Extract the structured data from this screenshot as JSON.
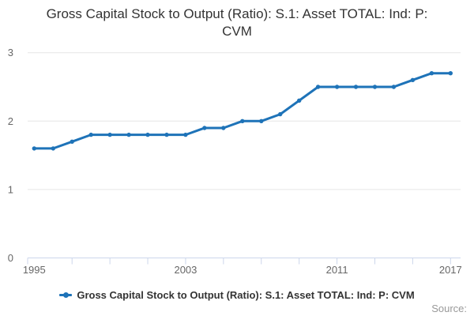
{
  "title": "Gross Capital Stock to Output (Ratio): S.1: Asset TOTAL: Ind: P: CVM",
  "source_label": "Source:",
  "legend": {
    "label": "Gross Capital Stock to Output (Ratio): S.1: Asset TOTAL: Ind: P: CVM"
  },
  "colors": {
    "line": "#1e73b8",
    "title_text": "#333333",
    "axis_label": "#666666",
    "axis_line": "#ccd6eb",
    "gridline": "#e6e6e6",
    "legend_text": "#333333",
    "source_text": "#999999"
  },
  "chart_data": {
    "type": "line",
    "title": "Gross Capital Stock to Output (Ratio): S.1: Asset TOTAL: Ind: P: CVM",
    "x": [
      1995,
      1996,
      1997,
      1998,
      1999,
      2000,
      2001,
      2002,
      2003,
      2004,
      2005,
      2006,
      2007,
      2008,
      2009,
      2010,
      2011,
      2012,
      2013,
      2014,
      2015,
      2016,
      2017
    ],
    "series": [
      {
        "name": "Gross Capital Stock to Output (Ratio): S.1: Asset TOTAL: Ind: P: CVM",
        "values": [
          1.6,
          1.6,
          1.7,
          1.8,
          1.8,
          1.8,
          1.8,
          1.8,
          1.8,
          1.9,
          1.9,
          2.0,
          2.0,
          2.1,
          2.3,
          2.5,
          2.5,
          2.5,
          2.5,
          2.5,
          2.6,
          2.7,
          2.7
        ]
      }
    ],
    "xlabel": "",
    "ylabel": "",
    "ylim": [
      0,
      3
    ],
    "y_ticks": [
      0,
      1,
      2,
      3
    ],
    "x_tick_years": [
      1997,
      1999,
      2001,
      2003,
      2005,
      2007,
      2009,
      2011,
      2013,
      2015,
      2017
    ],
    "x_label_years": [
      1995,
      2003,
      2011,
      2017
    ],
    "grid": "horizontal",
    "legend_position": "bottom",
    "marker": "circle"
  }
}
